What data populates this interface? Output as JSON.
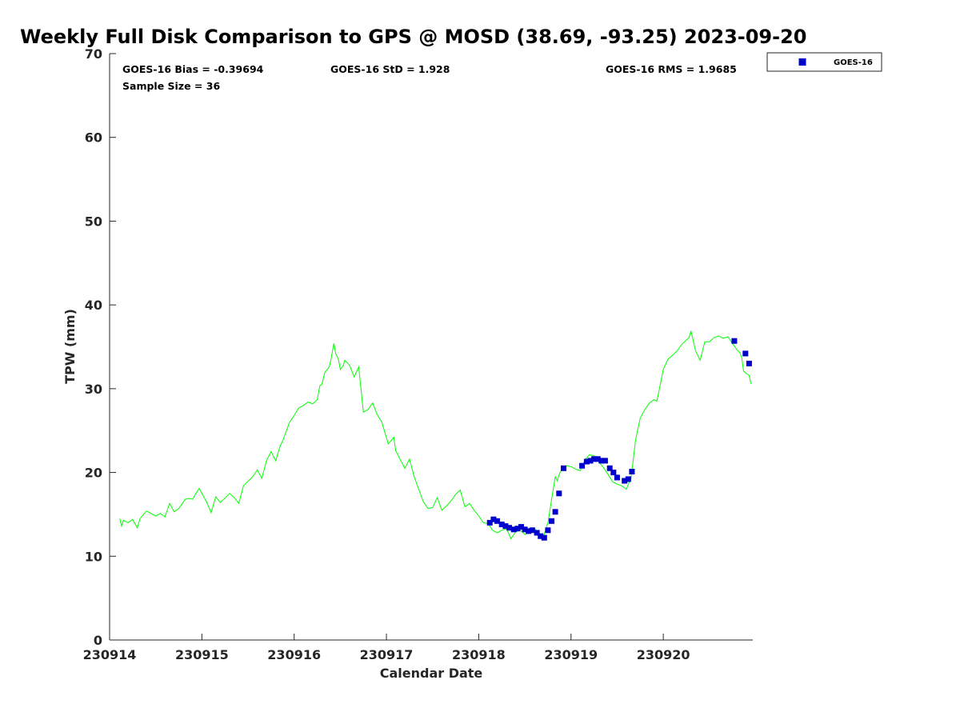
{
  "chart_data": {
    "type": "scatter",
    "title": "Weekly Full Disk Comparison to GPS @ MOSD (38.69, -93.25) 2023-09-20",
    "xlabel": "Calendar Date",
    "ylabel": "TPW (mm)",
    "xlim": [
      0,
      6.97
    ],
    "ylim": [
      0,
      70
    ],
    "x_ticks": [
      0,
      1,
      2,
      3,
      4,
      5,
      6
    ],
    "x_tick_labels": [
      "230914",
      "230915",
      "230916",
      "230917",
      "230918",
      "230919",
      "230920"
    ],
    "y_ticks": [
      0,
      10,
      20,
      30,
      40,
      50,
      60,
      70
    ],
    "y_tick_labels": [
      "0",
      "10",
      "20",
      "30",
      "40",
      "50",
      "60",
      "70"
    ],
    "stats": {
      "bias": "GOES-16 Bias = -0.39694",
      "std": "GOES-16 StD = 1.928",
      "rms": "GOES-16 RMS = 1.9685",
      "sample_size": "Sample Size = 36"
    },
    "legend": [
      {
        "label": "GOES-16",
        "color": "#0000cc",
        "marker": "square"
      }
    ],
    "legend_position": "top-right (outside axes)",
    "gps_series": {
      "name": "GPS",
      "color": "#00ff00",
      "x": [
        0.11,
        0.13,
        0.15,
        0.2,
        0.25,
        0.3,
        0.33,
        0.4,
        0.5,
        0.55,
        0.6,
        0.65,
        0.7,
        0.75,
        0.82,
        0.86,
        0.9,
        0.93,
        0.97,
        1.05,
        1.1,
        1.15,
        1.2,
        1.3,
        1.35,
        1.4,
        1.45,
        1.55,
        1.6,
        1.65,
        1.7,
        1.75,
        1.8,
        1.85,
        1.88,
        1.95,
        2.0,
        2.05,
        2.1,
        2.15,
        2.2,
        2.25,
        2.28,
        2.3,
        2.33,
        2.38,
        2.4,
        2.43,
        2.45,
        2.48,
        2.5,
        2.53,
        2.55,
        2.6,
        2.65,
        2.7,
        2.75,
        2.8,
        2.85,
        2.9,
        2.95,
        2.98,
        3.02,
        3.08,
        3.1,
        3.15,
        3.2,
        3.25,
        3.3,
        3.35,
        3.4,
        3.45,
        3.5,
        3.55,
        3.6,
        3.65,
        3.7,
        3.75,
        3.8,
        3.85,
        3.9,
        3.95,
        4.0,
        4.05,
        4.1,
        4.15,
        4.2,
        4.25,
        4.3,
        4.35,
        4.4,
        4.45,
        4.5,
        4.55,
        4.6,
        4.65,
        4.7,
        4.75,
        4.8,
        4.83,
        4.85,
        4.88,
        4.9,
        4.95,
        5.0,
        5.05,
        5.1,
        5.15,
        5.2,
        5.25,
        5.3,
        5.35,
        5.4,
        5.45,
        5.5,
        5.55,
        5.6,
        5.63,
        5.65,
        5.7,
        5.75,
        5.8,
        5.85,
        5.9,
        5.93,
        5.95,
        6.0,
        6.05,
        6.1,
        6.15,
        6.2,
        6.25,
        6.28,
        6.3,
        6.35,
        6.4,
        6.45,
        6.5,
        6.55,
        6.6,
        6.65,
        6.7,
        6.75,
        6.8,
        6.83,
        6.85,
        6.87,
        6.9,
        6.93,
        6.95
      ],
      "y": [
        14.5,
        13.6,
        14.3,
        14.0,
        14.4,
        13.4,
        14.5,
        15.4,
        14.8,
        15.1,
        14.7,
        16.3,
        15.3,
        15.7,
        16.8,
        16.9,
        16.8,
        17.4,
        18.1,
        16.5,
        15.2,
        17.1,
        16.4,
        17.5,
        17.0,
        16.3,
        18.4,
        19.5,
        20.3,
        19.3,
        21.4,
        22.5,
        21.4,
        23.2,
        23.9,
        26.0,
        26.8,
        27.7,
        28.0,
        28.4,
        28.2,
        28.7,
        30.4,
        30.5,
        31.9,
        32.6,
        33.5,
        35.4,
        34.2,
        33.5,
        32.3,
        32.7,
        33.4,
        32.8,
        31.4,
        32.6,
        27.2,
        27.5,
        28.3,
        26.9,
        26.0,
        24.9,
        23.4,
        24.2,
        22.6,
        21.5,
        20.5,
        21.6,
        19.5,
        18.0,
        16.5,
        15.7,
        15.8,
        17.0,
        15.5,
        16.0,
        16.6,
        17.4,
        17.9,
        15.9,
        16.3,
        15.5,
        14.8,
        14.0,
        13.9,
        13.1,
        12.8,
        13.1,
        13.3,
        12.1,
        12.9,
        13.1,
        12.6,
        12.9,
        13.4,
        12.8,
        12.3,
        14.0,
        17.5,
        19.5,
        19.0,
        20.0,
        20.3,
        20.8,
        20.7,
        20.4,
        20.2,
        21.5,
        22.1,
        22.0,
        21.3,
        20.6,
        19.8,
        18.9,
        18.6,
        18.4,
        18.0,
        18.8,
        19.2,
        23.9,
        26.5,
        27.5,
        28.3,
        28.7,
        28.5,
        29.5,
        32.3,
        33.5,
        34.0,
        34.5,
        35.3,
        35.8,
        36.1,
        36.9,
        34.5,
        33.4,
        35.6,
        35.6,
        36.1,
        36.3,
        36.0,
        36.2,
        35.4,
        34.6,
        34.3,
        33.7,
        32.1,
        31.8,
        31.6,
        30.6
      ]
    },
    "series": [
      {
        "name": "GOES-16",
        "color": "#0000cc",
        "x": [
          4.12,
          4.16,
          4.2,
          4.25,
          4.29,
          4.33,
          4.38,
          4.42,
          4.46,
          4.5,
          4.54,
          4.58,
          4.63,
          4.67,
          4.71,
          4.75,
          4.79,
          4.83,
          4.87,
          4.92,
          5.12,
          5.17,
          5.21,
          5.25,
          5.29,
          5.33,
          5.37,
          5.42,
          5.46,
          5.5,
          5.58,
          5.62,
          5.66,
          6.77,
          6.89,
          6.93
        ],
        "y": [
          14.0,
          14.4,
          14.2,
          13.8,
          13.6,
          13.4,
          13.2,
          13.3,
          13.5,
          13.2,
          13.0,
          13.1,
          12.8,
          12.4,
          12.2,
          13.1,
          14.2,
          15.3,
          17.5,
          20.5,
          20.8,
          21.3,
          21.4,
          21.6,
          21.6,
          21.4,
          21.4,
          20.5,
          20.0,
          19.4,
          19.0,
          19.2,
          20.1,
          35.7,
          34.2,
          33.0
        ]
      }
    ]
  }
}
